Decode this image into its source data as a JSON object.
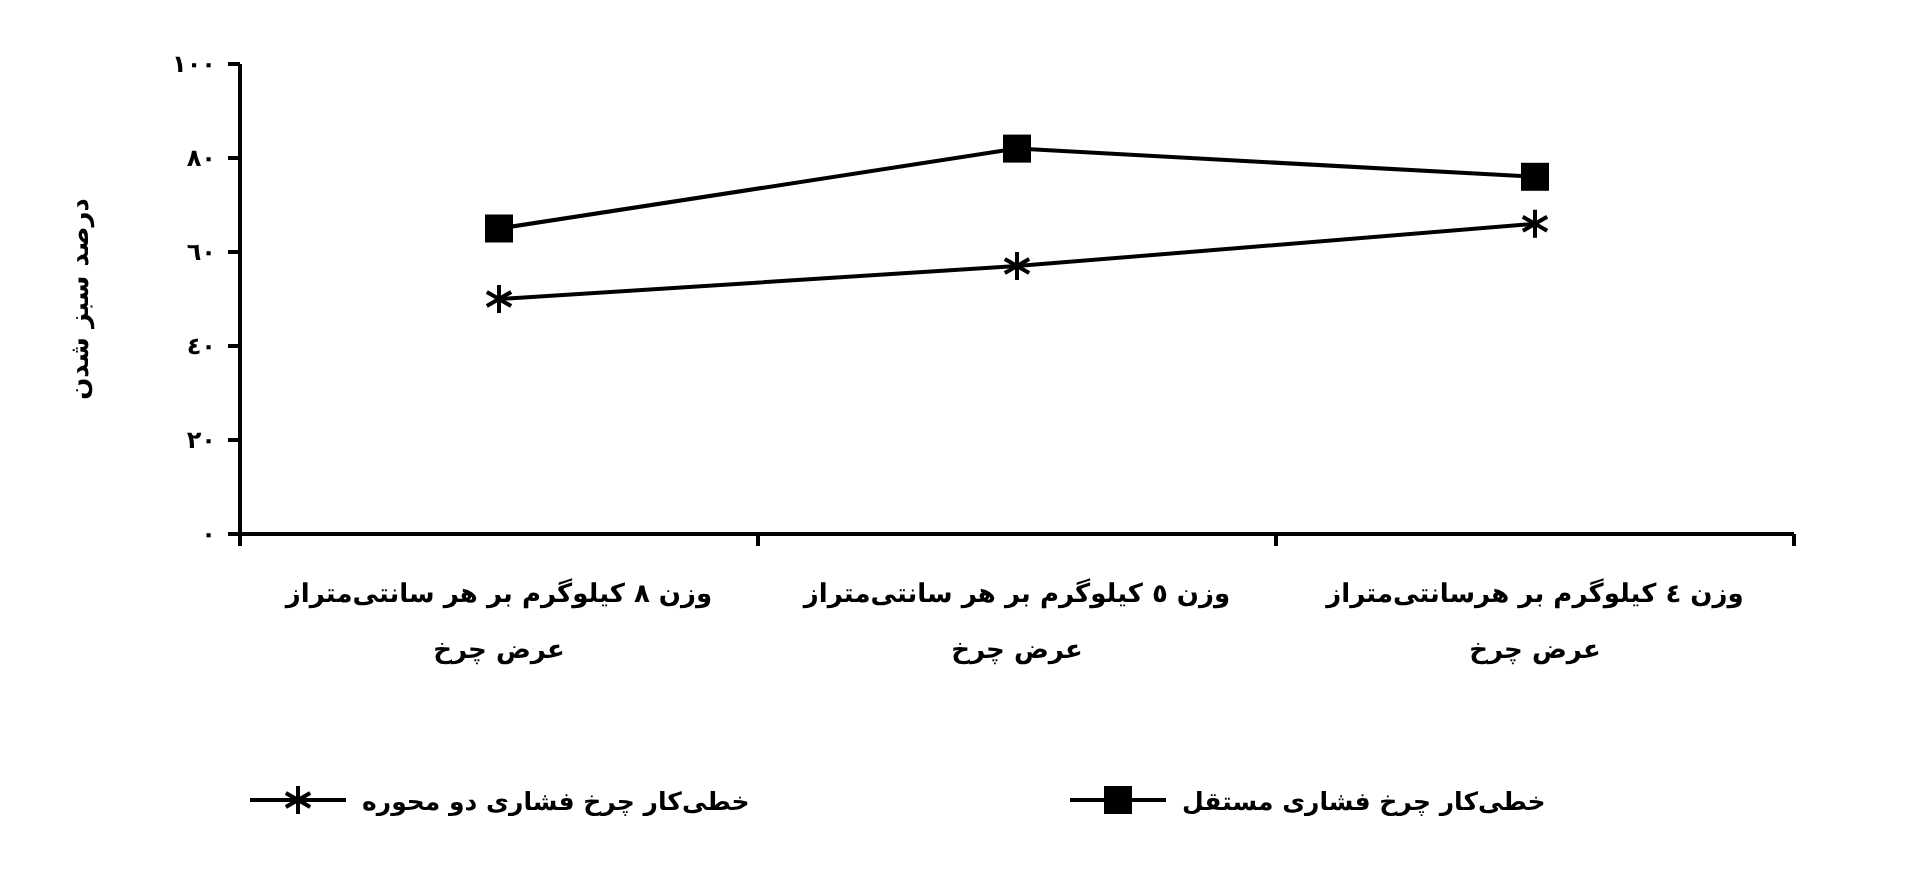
{
  "chart_data": {
    "type": "line",
    "ylabel": "درصد سبز شدن",
    "categories": [
      "وزن ٨ کیلوگرم بر هر سانتی‌متراز عرض چرخ",
      "وزن ٥ کیلوگرم بر هر سانتی‌متراز عرض چرخ",
      "وزن ٤ کیلوگرم بر هرسانتی‌متراز عرض چرخ"
    ],
    "series": [
      {
        "name": "خطی‌کار چرخ فشاری مستقل",
        "color": "#000000",
        "marker": "square",
        "values": [
          65,
          82,
          76
        ]
      },
      {
        "name": "خطی‌کار چرخ فشاری دو محوره",
        "color": "#000000",
        "marker": "cross",
        "values": [
          50,
          57,
          66
        ]
      }
    ],
    "ylim": [
      0,
      100
    ],
    "yticks": [
      {
        "value": 0,
        "label": "٠"
      },
      {
        "value": 20,
        "label": "٢٠"
      },
      {
        "value": 40,
        "label": "٤٠"
      },
      {
        "value": 60,
        "label": "٦٠"
      },
      {
        "value": 80,
        "label": "٨٠"
      },
      {
        "value": 100,
        "label": "١٠٠"
      }
    ],
    "legend": "bottom",
    "line_style": "solid"
  }
}
